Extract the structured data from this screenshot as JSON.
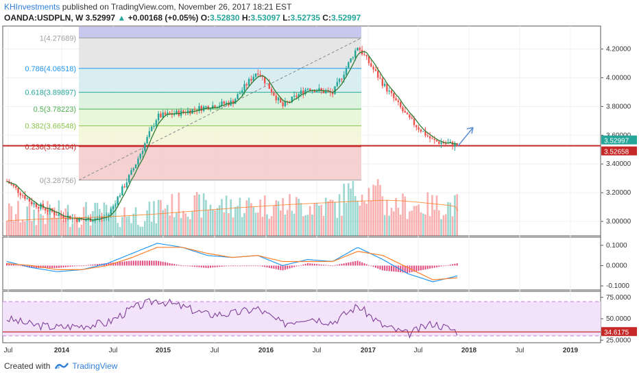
{
  "header": {
    "author": "KHInvestments",
    "published": "published on TradingView.com, November 26, 2017 18:21 EST",
    "symbol": "OANDA:USDPLN, W",
    "last": "3.52997",
    "change": "+0.00168 (+0.05%)",
    "o_label": "O:",
    "o": "3.52830",
    "h_label": "H:",
    "h": "3.53097",
    "l_label": "L:",
    "l": "3.52735",
    "c_label": "C:",
    "c": "3.52997"
  },
  "footer": {
    "created_with": "Created with",
    "brand": "TradingView"
  },
  "colors": {
    "up": "#26a69a",
    "down": "#ef5350",
    "ma": "#2e7d32",
    "macd": "#2196f3",
    "signal": "#ff7f27",
    "rsi": "#7e3f98",
    "support": "#c62828",
    "arrow": "#5b8fd1"
  },
  "chart_data": [
    {
      "type": "candlestick",
      "panel": "price",
      "y_ticks": [
        "4.20000",
        "4.00000",
        "3.80000",
        "3.60000",
        "3.40000",
        "3.20000",
        "3.00000"
      ],
      "ylim": [
        2.9,
        4.36
      ],
      "x_ticks": [
        "Jul",
        "2014",
        "Jul",
        "2015",
        "Jul",
        "2016",
        "Jul",
        "2017",
        "Jul",
        "2018",
        "Jul",
        "2019"
      ],
      "price_labels": [
        "3.52997",
        "3.52658"
      ],
      "support_level": 3.52658,
      "fib_levels": [
        {
          "label": "1(4.27689)",
          "value": 4.27689,
          "color": "#9e9e9e"
        },
        {
          "label": "0.786(4.06518)",
          "value": 4.06518,
          "color": "#2196f3"
        },
        {
          "label": "0.618(3.89897)",
          "value": 3.89897,
          "color": "#26a69a"
        },
        {
          "label": "0.5(3.78223)",
          "value": 3.78223,
          "color": "#4caf50"
        },
        {
          "label": "0.382(3.66548)",
          "value": 3.66548,
          "color": "#8bc34a"
        },
        {
          "label": "0.236(3.52104)",
          "value": 3.52104,
          "color": "#c62828"
        },
        {
          "label": "0(3.28756)",
          "value": 3.28756,
          "color": "#9e9e9e"
        }
      ],
      "series": [
        {
          "name": "",
          "x": [
            "2013-07",
            "2013-10",
            "2014-01",
            "2014-04",
            "2014-07",
            "2014-10",
            "2015-01",
            "2015-04",
            "2015-07",
            "2015-10",
            "2016-01",
            "2016-04",
            "2016-07",
            "2016-10",
            "2016-12",
            "2017-03",
            "2017-06",
            "2017-09",
            "2017-11"
          ],
          "values": [
            3.28,
            3.13,
            3.05,
            3.01,
            3.03,
            3.35,
            3.73,
            3.76,
            3.8,
            3.83,
            4.05,
            3.8,
            3.93,
            3.89,
            4.22,
            3.96,
            3.72,
            3.56,
            3.53
          ]
        }
      ]
    },
    {
      "type": "line",
      "panel": "macd",
      "y_ticks": [
        "0.1000",
        "0.0000",
        "-0.1000"
      ],
      "ylim": [
        -0.12,
        0.14
      ],
      "series": [
        {
          "name": "",
          "values": [
            0.02,
            -0.01,
            -0.03,
            -0.02,
            0.01,
            0.06,
            0.11,
            0.09,
            0.05,
            0.04,
            0.05,
            0.0,
            0.03,
            0.02,
            0.09,
            0.03,
            -0.04,
            -0.08,
            -0.05
          ]
        },
        {
          "name": "",
          "values": [
            0.01,
            0.0,
            -0.02,
            -0.02,
            0.0,
            0.04,
            0.09,
            0.09,
            0.06,
            0.04,
            0.05,
            0.02,
            0.02,
            0.02,
            0.07,
            0.05,
            -0.01,
            -0.07,
            -0.06
          ]
        }
      ]
    },
    {
      "type": "line",
      "panel": "rsi",
      "y_ticks": [
        "75.0000",
        "50.0000",
        "25.0000"
      ],
      "ylim": [
        22,
        82
      ],
      "rsi_label": "34.6175",
      "series": [
        {
          "name": "",
          "values": [
            50,
            43,
            40,
            42,
            45,
            62,
            72,
            64,
            55,
            56,
            62,
            44,
            52,
            46,
            65,
            42,
            32,
            45,
            35
          ]
        }
      ]
    }
  ]
}
